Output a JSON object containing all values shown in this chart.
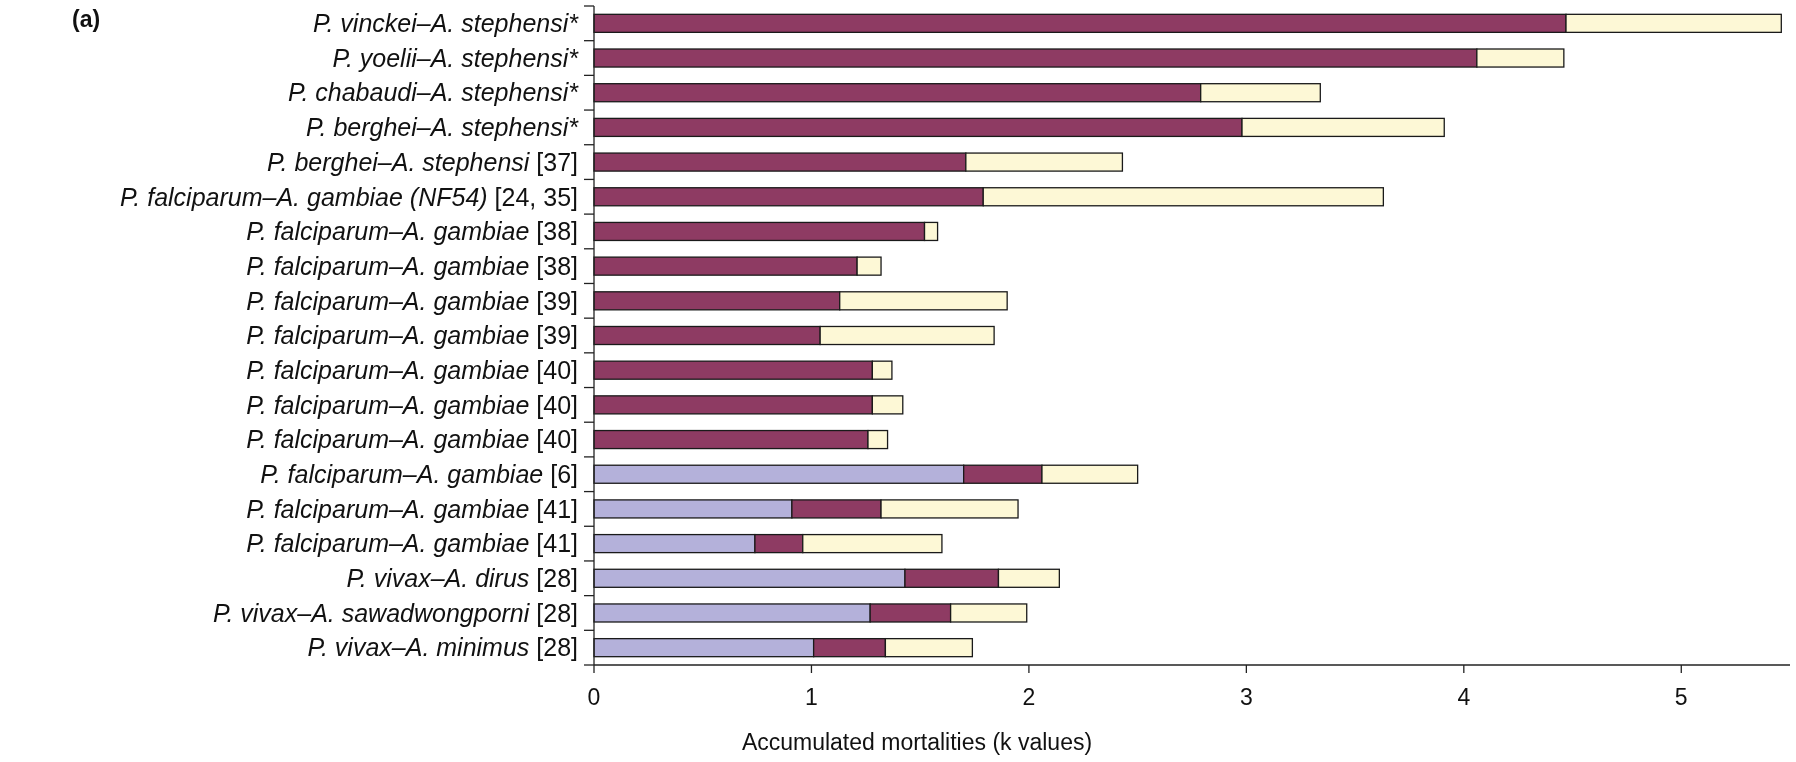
{
  "chart_data": {
    "type": "bar",
    "orientation": "horizontal",
    "stacked": true,
    "title": "(a)",
    "xlabel": "Accumulated mortalities (k values)",
    "categories": [
      "P. vinckei–A. stephensi*",
      "P. yoelii–A. stephensi*",
      "P. chabaudi–A. stephensi*",
      "P. berghei–A. stephensi*",
      "P. berghei–A. stephensi [37]",
      "P. falciparum–A. gambiae (NF54) [24, 35]",
      "P. falciparum–A. gambiae [38]",
      "P. falciparum–A. gambiae [38]",
      "P. falciparum–A. gambiae [39]",
      "P. falciparum–A. gambiae [39]",
      "P. falciparum–A. gambiae [40]",
      "P. falciparum–A. gambiae [40]",
      "P. falciparum–A. gambiae [40]",
      "P. falciparum–A. gambiae [6]",
      "P. falciparum–A. gambiae [41]",
      "P. falciparum–A. gambiae [41]",
      "P. vivax–A. dirus [28]",
      "P. vivax–A. sawadwongporni [28]",
      "P. vivax–A. minimus [28]"
    ],
    "series": [
      {
        "color": "#b4b1da",
        "values": [
          null,
          null,
          null,
          null,
          null,
          null,
          null,
          null,
          null,
          null,
          null,
          null,
          null,
          1.7,
          0.91,
          0.74,
          1.43,
          1.27,
          1.01
        ]
      },
      {
        "color": "#8e3b63",
        "values": [
          4.47,
          4.06,
          2.79,
          2.98,
          1.71,
          1.79,
          1.52,
          1.21,
          1.13,
          1.04,
          1.28,
          1.28,
          1.26,
          0.36,
          0.41,
          0.22,
          0.43,
          0.37,
          0.33
        ]
      },
      {
        "color": "#fdf8d6",
        "values": [
          0.99,
          0.4,
          0.55,
          0.93,
          0.72,
          1.84,
          0.06,
          0.11,
          0.77,
          0.8,
          0.09,
          0.14,
          0.09,
          0.44,
          0.63,
          0.64,
          0.28,
          0.35,
          0.4
        ]
      }
    ],
    "xlim": [
      0,
      5.5
    ],
    "xticks": [
      0,
      1,
      2,
      3,
      4,
      5
    ],
    "grid": false
  }
}
